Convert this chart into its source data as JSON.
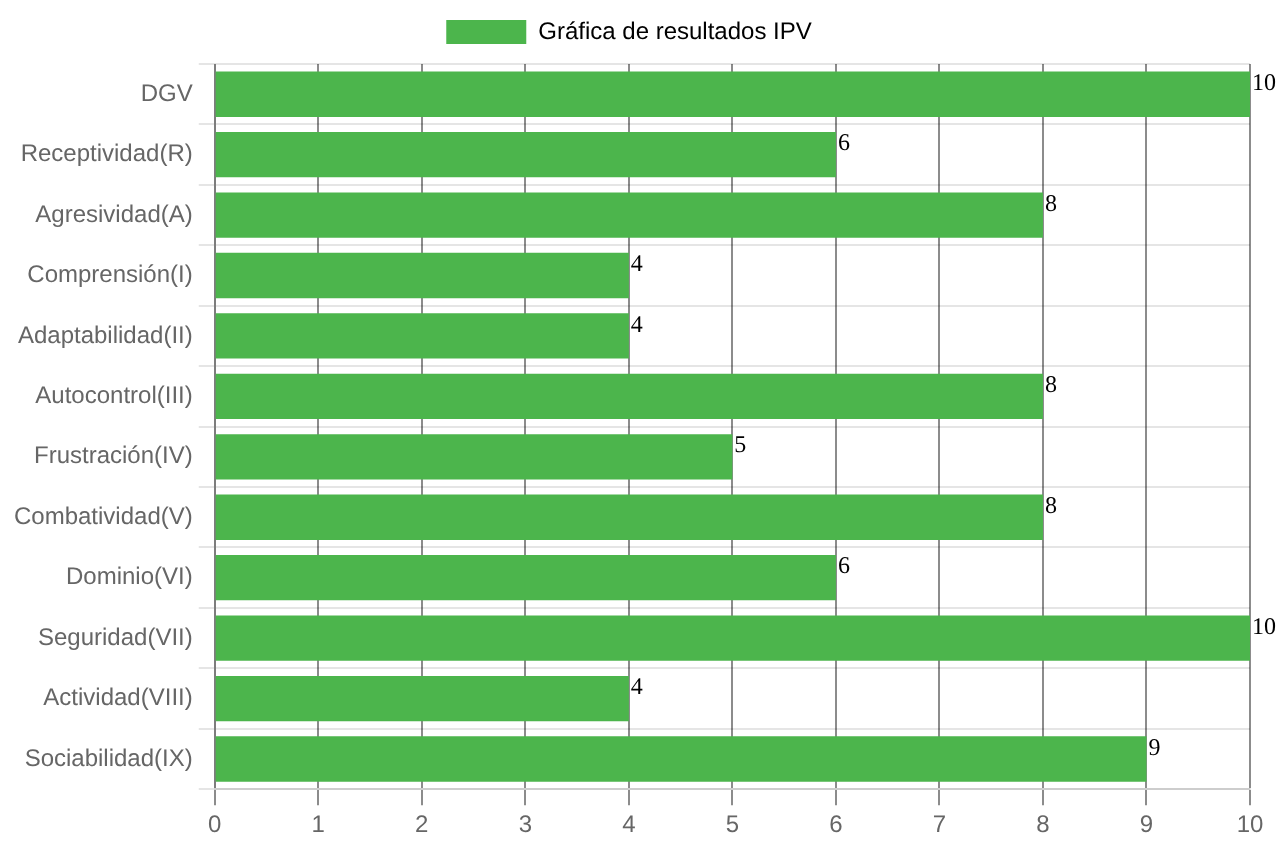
{
  "chart_data": {
    "type": "bar",
    "orientation": "horizontal",
    "categories": [
      "DGV",
      "Receptividad(R)",
      "Agresividad(A)",
      "Comprensión(I)",
      "Adaptabilidad(II)",
      "Autocontrol(III)",
      "Frustración(IV)",
      "Combatividad(V)",
      "Dominio(VI)",
      "Seguridad(VII)",
      "Actividad(VIII)",
      "Sociabilidad(IX)"
    ],
    "series": [
      {
        "name": "Gráfica de resultados IPV",
        "color": "#4cb54c",
        "values": [
          10,
          6,
          8,
          4,
          4,
          8,
          5,
          8,
          6,
          10,
          4,
          9
        ]
      }
    ],
    "xlim": [
      0,
      10
    ],
    "xticks": [
      0,
      1,
      2,
      3,
      4,
      5,
      6,
      7,
      8,
      9,
      10
    ],
    "grid": true,
    "legend": "top",
    "data_labels": true
  }
}
